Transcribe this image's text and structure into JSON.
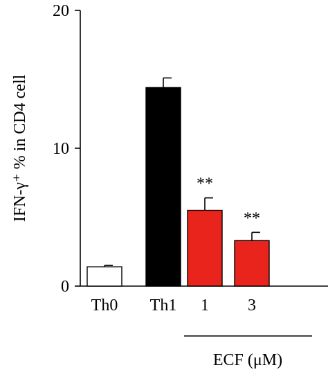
{
  "chart_data": {
    "type": "bar",
    "title": "",
    "xlabel": "",
    "ylabel": "IFN-γ⁺ % in CD4 cell",
    "ylim": [
      0,
      20
    ],
    "yticks": [
      0,
      10,
      20
    ],
    "categories": [
      "Th0",
      "Th1",
      "1",
      "3"
    ],
    "values": [
      1.4,
      14.4,
      5.5,
      3.3
    ],
    "errors": [
      0.1,
      0.7,
      0.9,
      0.6
    ],
    "significance": [
      "",
      "",
      "**",
      "**"
    ],
    "bar_colors": [
      "#ffffff",
      "#000000",
      "#e8241c",
      "#e8241c"
    ],
    "group_label": "ECF (μM)",
    "group_categories": [
      "1",
      "3"
    ]
  }
}
